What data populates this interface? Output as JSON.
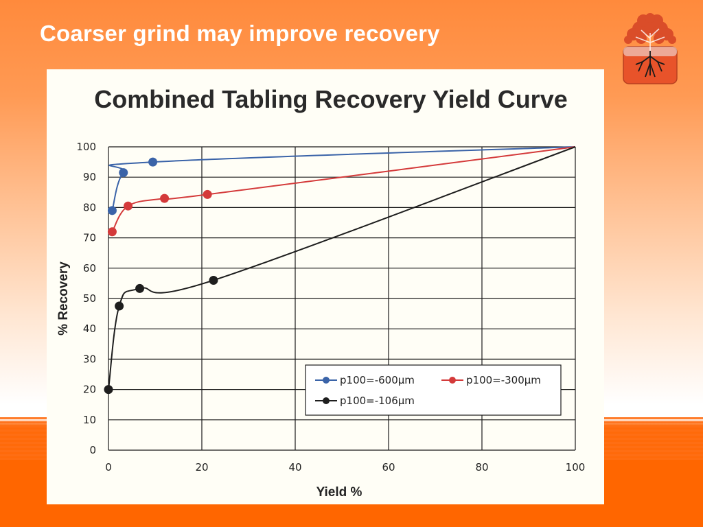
{
  "slide": {
    "title": "Coarser grind may improve recovery",
    "logo_icon": "tree-roots-logo-icon"
  },
  "colors": {
    "background_top": "#ff8a3c",
    "background_bottom": "#ff6600",
    "series_blue": "#3a63a8",
    "series_red": "#d43a3a",
    "series_black": "#1e1e1e"
  },
  "chart_data": {
    "type": "line",
    "title": "Combined Tabling Recovery Yield Curve",
    "xlabel": "Yield %",
    "ylabel": "% Recovery",
    "xlim": [
      0,
      100
    ],
    "ylim": [
      0,
      100
    ],
    "x_ticks": [
      0,
      20,
      40,
      60,
      80,
      100
    ],
    "y_ticks": [
      0,
      10,
      20,
      30,
      40,
      50,
      60,
      70,
      80,
      90,
      100
    ],
    "grid": true,
    "legend_position": "lower-right",
    "series": [
      {
        "name": "p100=-600µm",
        "color": "#3a63a8",
        "x": [
          0.8,
          3.2,
          9.5,
          100
        ],
        "y": [
          79,
          91.5,
          95,
          100
        ],
        "markers": [
          true,
          true,
          true,
          false
        ]
      },
      {
        "name": "p100=-300µm",
        "color": "#d43a3a",
        "x": [
          0.8,
          4.2,
          12,
          21.2,
          100
        ],
        "y": [
          72,
          80.5,
          83,
          84.3,
          100
        ],
        "markers": [
          true,
          true,
          true,
          true,
          false
        ]
      },
      {
        "name": "p100=-106µm",
        "color": "#1e1e1e",
        "x": [
          0,
          2.3,
          6.7,
          22.5,
          100
        ],
        "y": [
          20,
          47.5,
          53.3,
          56,
          100
        ],
        "markers": [
          true,
          true,
          true,
          true,
          false
        ]
      }
    ]
  }
}
